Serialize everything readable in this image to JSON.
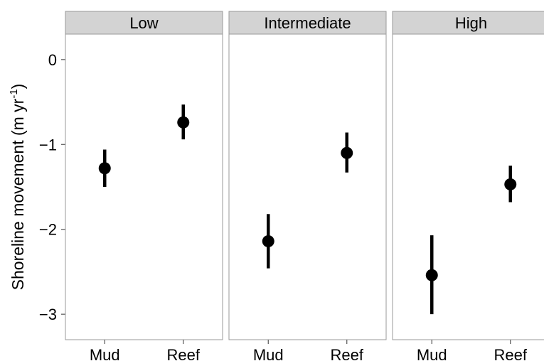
{
  "chart_data": {
    "type": "scatter",
    "ylabel": {
      "main": "Shoreline movement (m yr",
      "sup": "-1",
      "close": ")"
    },
    "xlabel": "",
    "ylim": [
      -3.3,
      0.3
    ],
    "yticks": [
      0,
      -1,
      -2,
      -3
    ],
    "ytick_labels": [
      "0",
      "−1",
      "−2",
      "−3"
    ],
    "categories": [
      "Mud",
      "Reef"
    ],
    "grid": false,
    "panels": [
      {
        "title": "Low",
        "points": [
          {
            "x": "Mud",
            "y": -1.28,
            "low": -1.5,
            "high": -1.06
          },
          {
            "x": "Reef",
            "y": -0.74,
            "low": -0.94,
            "high": -0.53
          }
        ]
      },
      {
        "title": "Intermediate",
        "points": [
          {
            "x": "Mud",
            "y": -2.14,
            "low": -2.46,
            "high": -1.82
          },
          {
            "x": "Reef",
            "y": -1.1,
            "low": -1.33,
            "high": -0.86
          }
        ]
      },
      {
        "title": "High",
        "points": [
          {
            "x": "Mud",
            "y": -2.54,
            "low": -3.0,
            "high": -2.07
          },
          {
            "x": "Reef",
            "y": -1.47,
            "low": -1.68,
            "high": -1.25
          }
        ]
      }
    ]
  },
  "colors": {
    "strip_bg": "#d3d3d3",
    "panel_border": "#9a9a9a",
    "point": "#000000",
    "axis": "#555555"
  }
}
